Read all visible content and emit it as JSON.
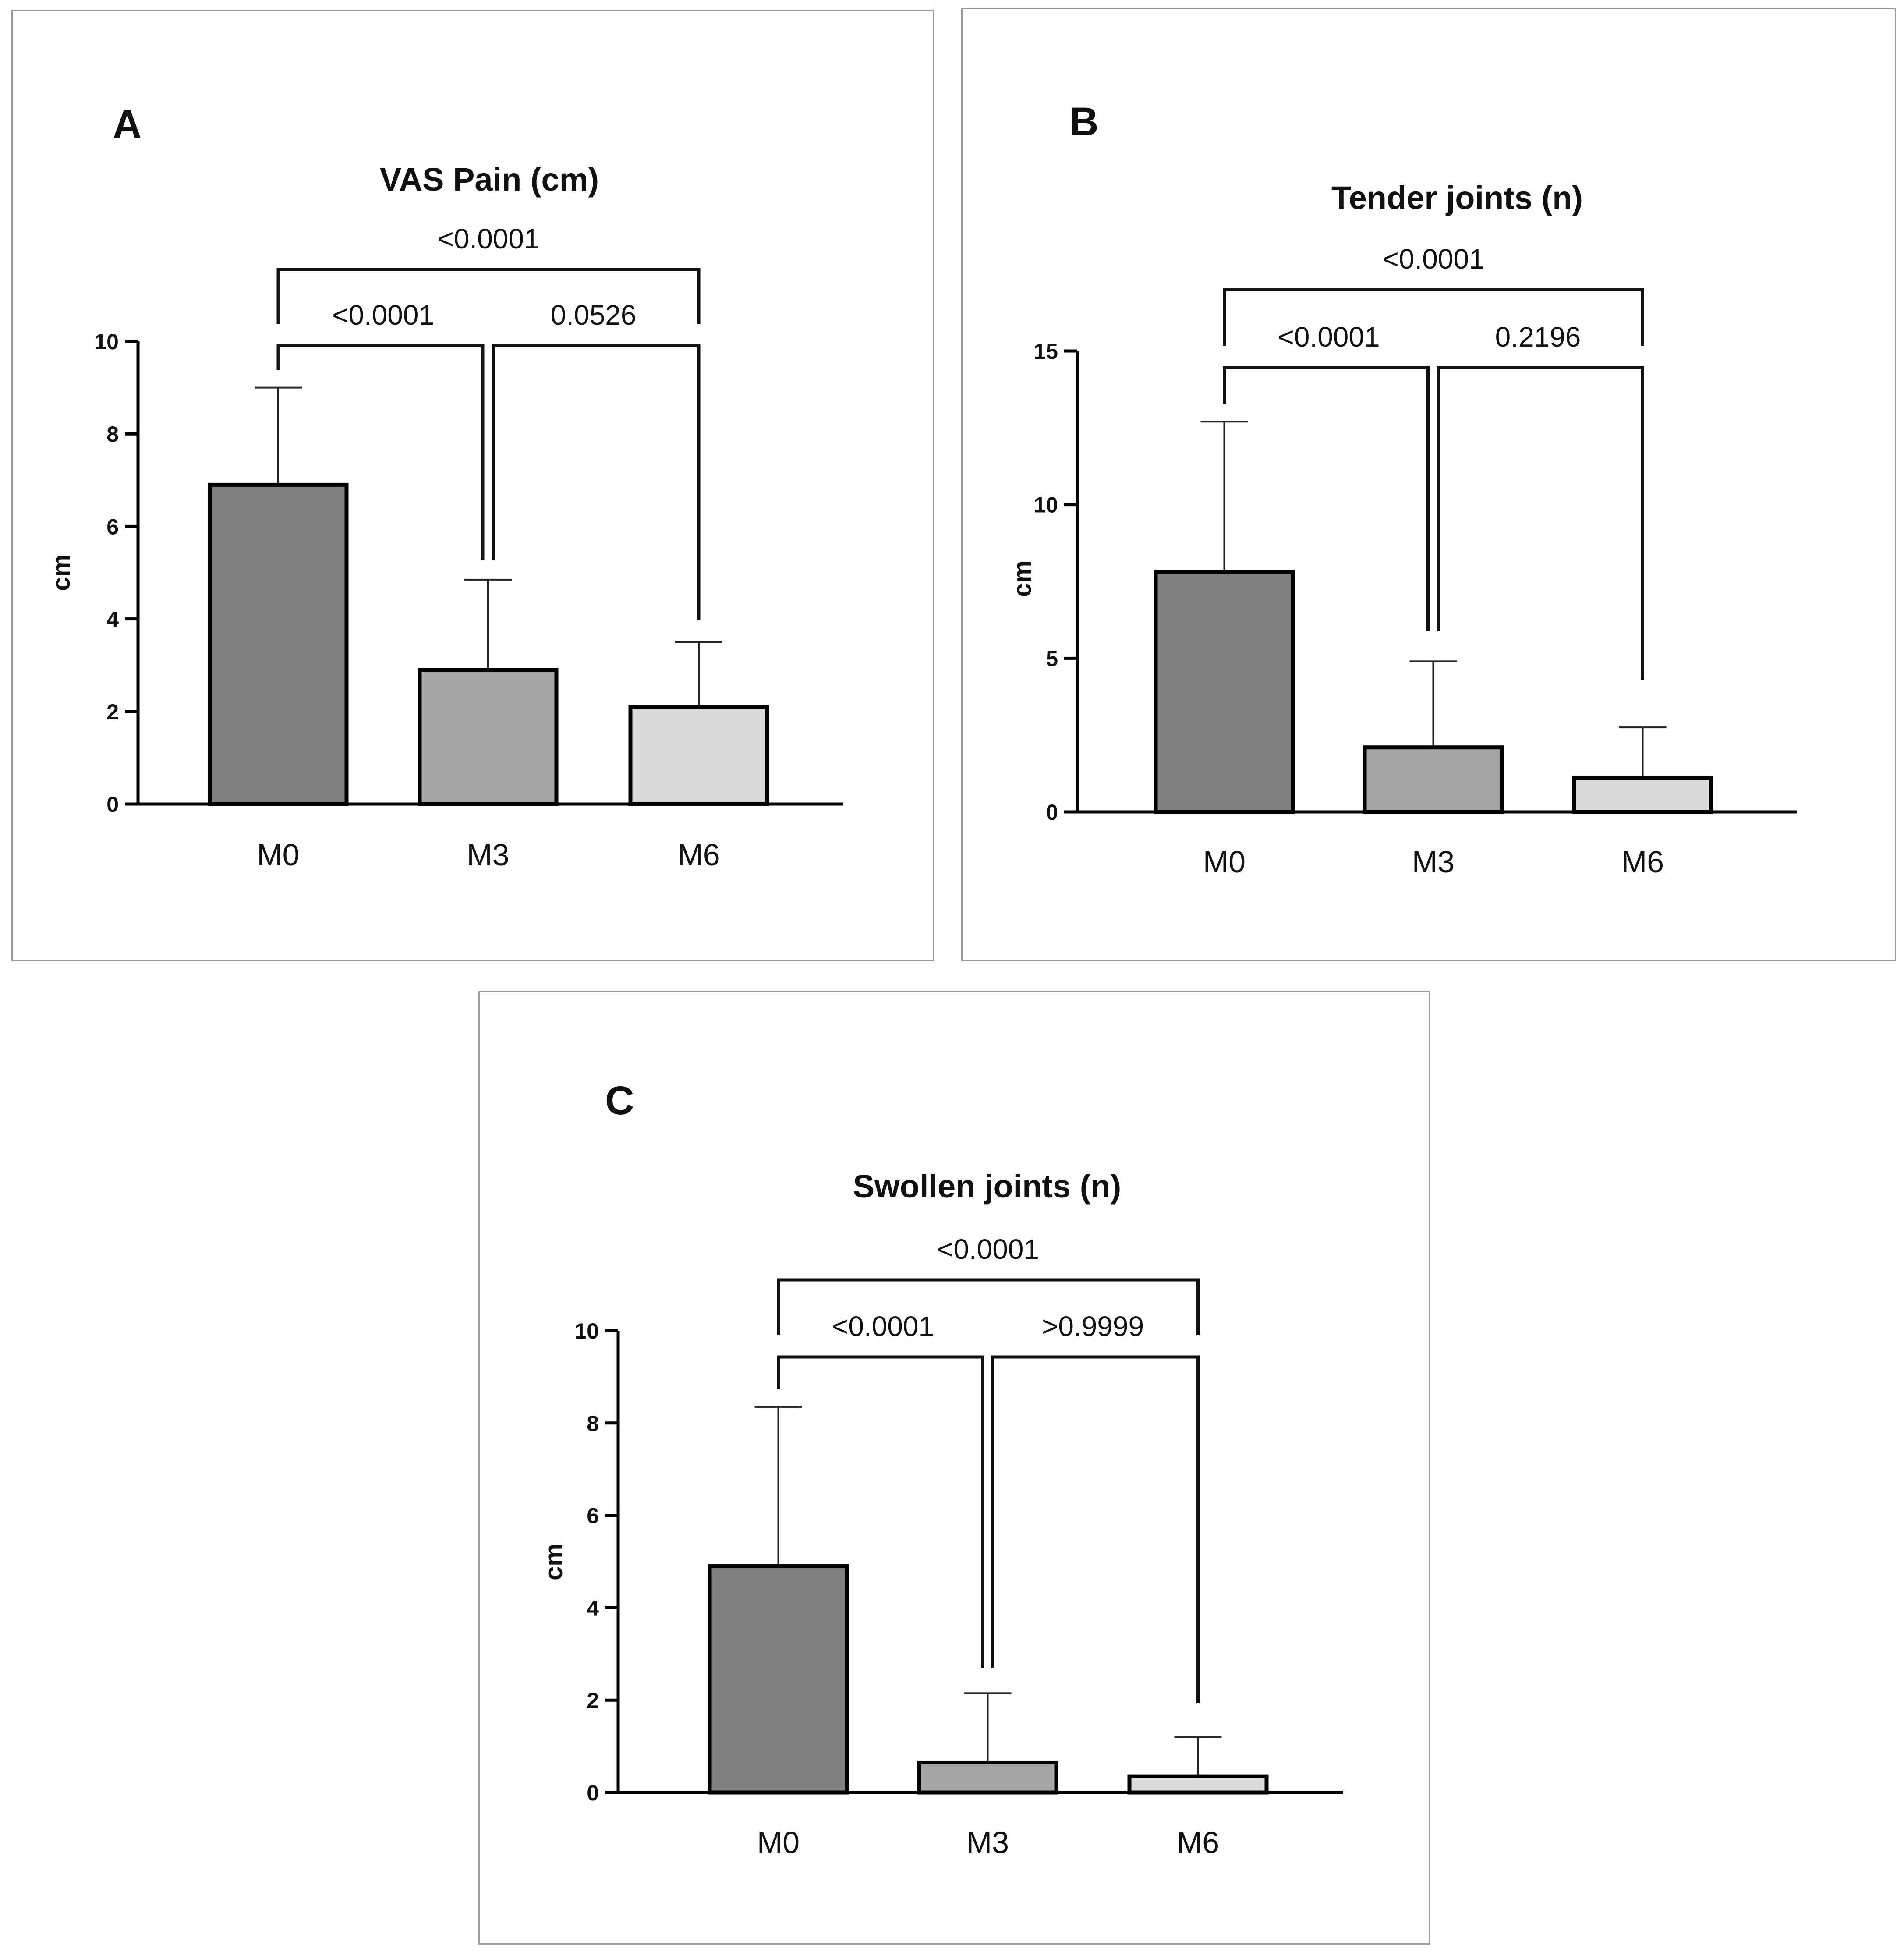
{
  "chart_data": [
    {
      "panel": "A",
      "type": "bar",
      "title": "VAS Pain (cm)",
      "xlabel": "",
      "ylabel": "cm",
      "ylim": [
        0,
        10
      ],
      "yticks": [
        0,
        2,
        4,
        6,
        8,
        10
      ],
      "categories": [
        "M0",
        "M3",
        "M6"
      ],
      "values": [
        6.9,
        2.9,
        2.1
      ],
      "errors": [
        2.1,
        1.95,
        1.4
      ],
      "colors": [
        "#7f7f7f",
        "#a5a5a8",
        "#d9d9d9"
      ],
      "comparisons": [
        {
          "from": 0,
          "to": 2,
          "label": "<0.0001"
        },
        {
          "from": 0,
          "to": 1,
          "label": "<0.0001"
        },
        {
          "from": 1,
          "to": 2,
          "label": "0.0526"
        }
      ]
    },
    {
      "panel": "B",
      "type": "bar",
      "title": "Tender joints (n)",
      "xlabel": "",
      "ylabel": "cm",
      "ylim": [
        0,
        15
      ],
      "yticks": [
        0,
        5,
        10,
        15
      ],
      "categories": [
        "M0",
        "M3",
        "M6"
      ],
      "values": [
        7.8,
        2.1,
        1.1
      ],
      "errors": [
        4.9,
        2.8,
        1.65
      ],
      "colors": [
        "#7f7f7f",
        "#a5a5a8",
        "#d9d9d9"
      ],
      "comparisons": [
        {
          "from": 0,
          "to": 2,
          "label": "<0.0001"
        },
        {
          "from": 0,
          "to": 1,
          "label": "<0.0001"
        },
        {
          "from": 1,
          "to": 2,
          "label": "0.2196"
        }
      ]
    },
    {
      "panel": "C",
      "type": "bar",
      "title": "Swollen joints (n)",
      "xlabel": "",
      "ylabel": "cm",
      "ylim": [
        0,
        10
      ],
      "yticks": [
        0,
        2,
        4,
        6,
        8,
        10
      ],
      "categories": [
        "M0",
        "M3",
        "M6"
      ],
      "values": [
        4.9,
        0.65,
        0.35
      ],
      "errors": [
        3.45,
        1.5,
        0.85
      ],
      "colors": [
        "#7f7f7f",
        "#a5a5a8",
        "#d9d9d9"
      ],
      "comparisons": [
        {
          "from": 0,
          "to": 2,
          "label": "<0.0001"
        },
        {
          "from": 0,
          "to": 1,
          "label": "<0.0001"
        },
        {
          "from": 1,
          "to": 2,
          "label": ">0.9999"
        }
      ]
    }
  ]
}
